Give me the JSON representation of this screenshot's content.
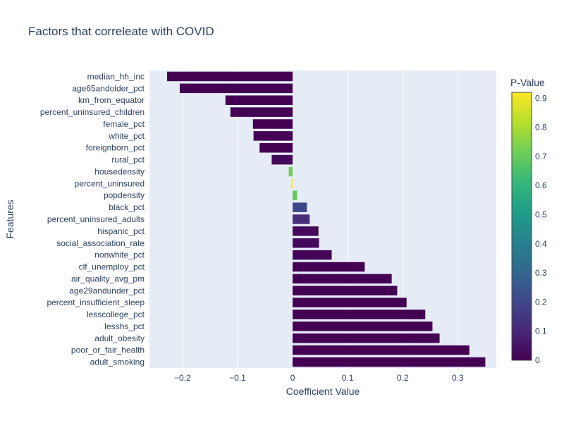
{
  "chart_data": {
    "type": "bar",
    "orientation": "horizontal",
    "title": "Factors that correleate with COVID",
    "xlabel": "Coefficient Value",
    "ylabel": "Features",
    "xlim": [
      -0.26,
      0.37
    ],
    "x_ticks": [
      -0.2,
      -0.1,
      0,
      0.1,
      0.2,
      0.3
    ],
    "x_tick_labels": [
      "−0.2",
      "−0.1",
      "0",
      "0.1",
      "0.2",
      "0.3"
    ],
    "grid": true,
    "categories": [
      "median_hh_inc",
      "age65andolder_pct",
      "km_from_equator",
      "percent_uninsured_children",
      "female_pct",
      "white_pct",
      "foreignborn_pct",
      "rural_pct",
      "housedensity",
      "percent_uninsured",
      "popdensity",
      "black_pct",
      "percent_uninsured_adults",
      "hispanic_pct",
      "social_association_rate",
      "nonwhite_pct",
      "clf_unemploy_pct",
      "air_quality_avg_pm",
      "age29andunder_pct",
      "percent_insufficient_sleep",
      "lesscollege_pct",
      "lesshs_pct",
      "adult_obesity",
      "poor_or_fair_health",
      "adult_smoking"
    ],
    "values": [
      -0.228,
      -0.205,
      -0.122,
      -0.113,
      -0.072,
      -0.071,
      -0.06,
      -0.038,
      -0.007,
      -0.002,
      0.008,
      0.026,
      0.031,
      0.047,
      0.048,
      0.071,
      0.131,
      0.18,
      0.19,
      0.207,
      0.241,
      0.254,
      0.267,
      0.321,
      0.35
    ],
    "p_values": [
      0.0,
      0.0,
      0.0,
      0.0,
      0.0,
      0.0,
      0.0,
      0.02,
      0.72,
      0.9,
      0.7,
      0.2,
      0.12,
      0.02,
      0.02,
      0.01,
      0.0,
      0.0,
      0.0,
      0.0,
      0.0,
      0.0,
      0.0,
      0.0,
      0.0
    ],
    "colorbar": {
      "title": "P-Value",
      "range": [
        0,
        0.92
      ],
      "ticks": [
        0,
        0.1,
        0.2,
        0.3,
        0.4,
        0.5,
        0.6,
        0.7,
        0.8,
        0.9
      ],
      "tick_labels": [
        "0",
        "0.1",
        "0.2",
        "0.3",
        "0.4",
        "0.5",
        "0.6",
        "0.7",
        "0.8",
        "0.9"
      ],
      "colorscale": "viridis"
    },
    "colors": {
      "plot_bg": "#e5ecf6",
      "grid": "#ffffff",
      "text": "#2a3f5f",
      "viridis": [
        "#440154",
        "#482878",
        "#3e4989",
        "#31688e",
        "#26828e",
        "#1f9e89",
        "#35b779",
        "#6ece58",
        "#b5de2b",
        "#fde725"
      ]
    }
  }
}
